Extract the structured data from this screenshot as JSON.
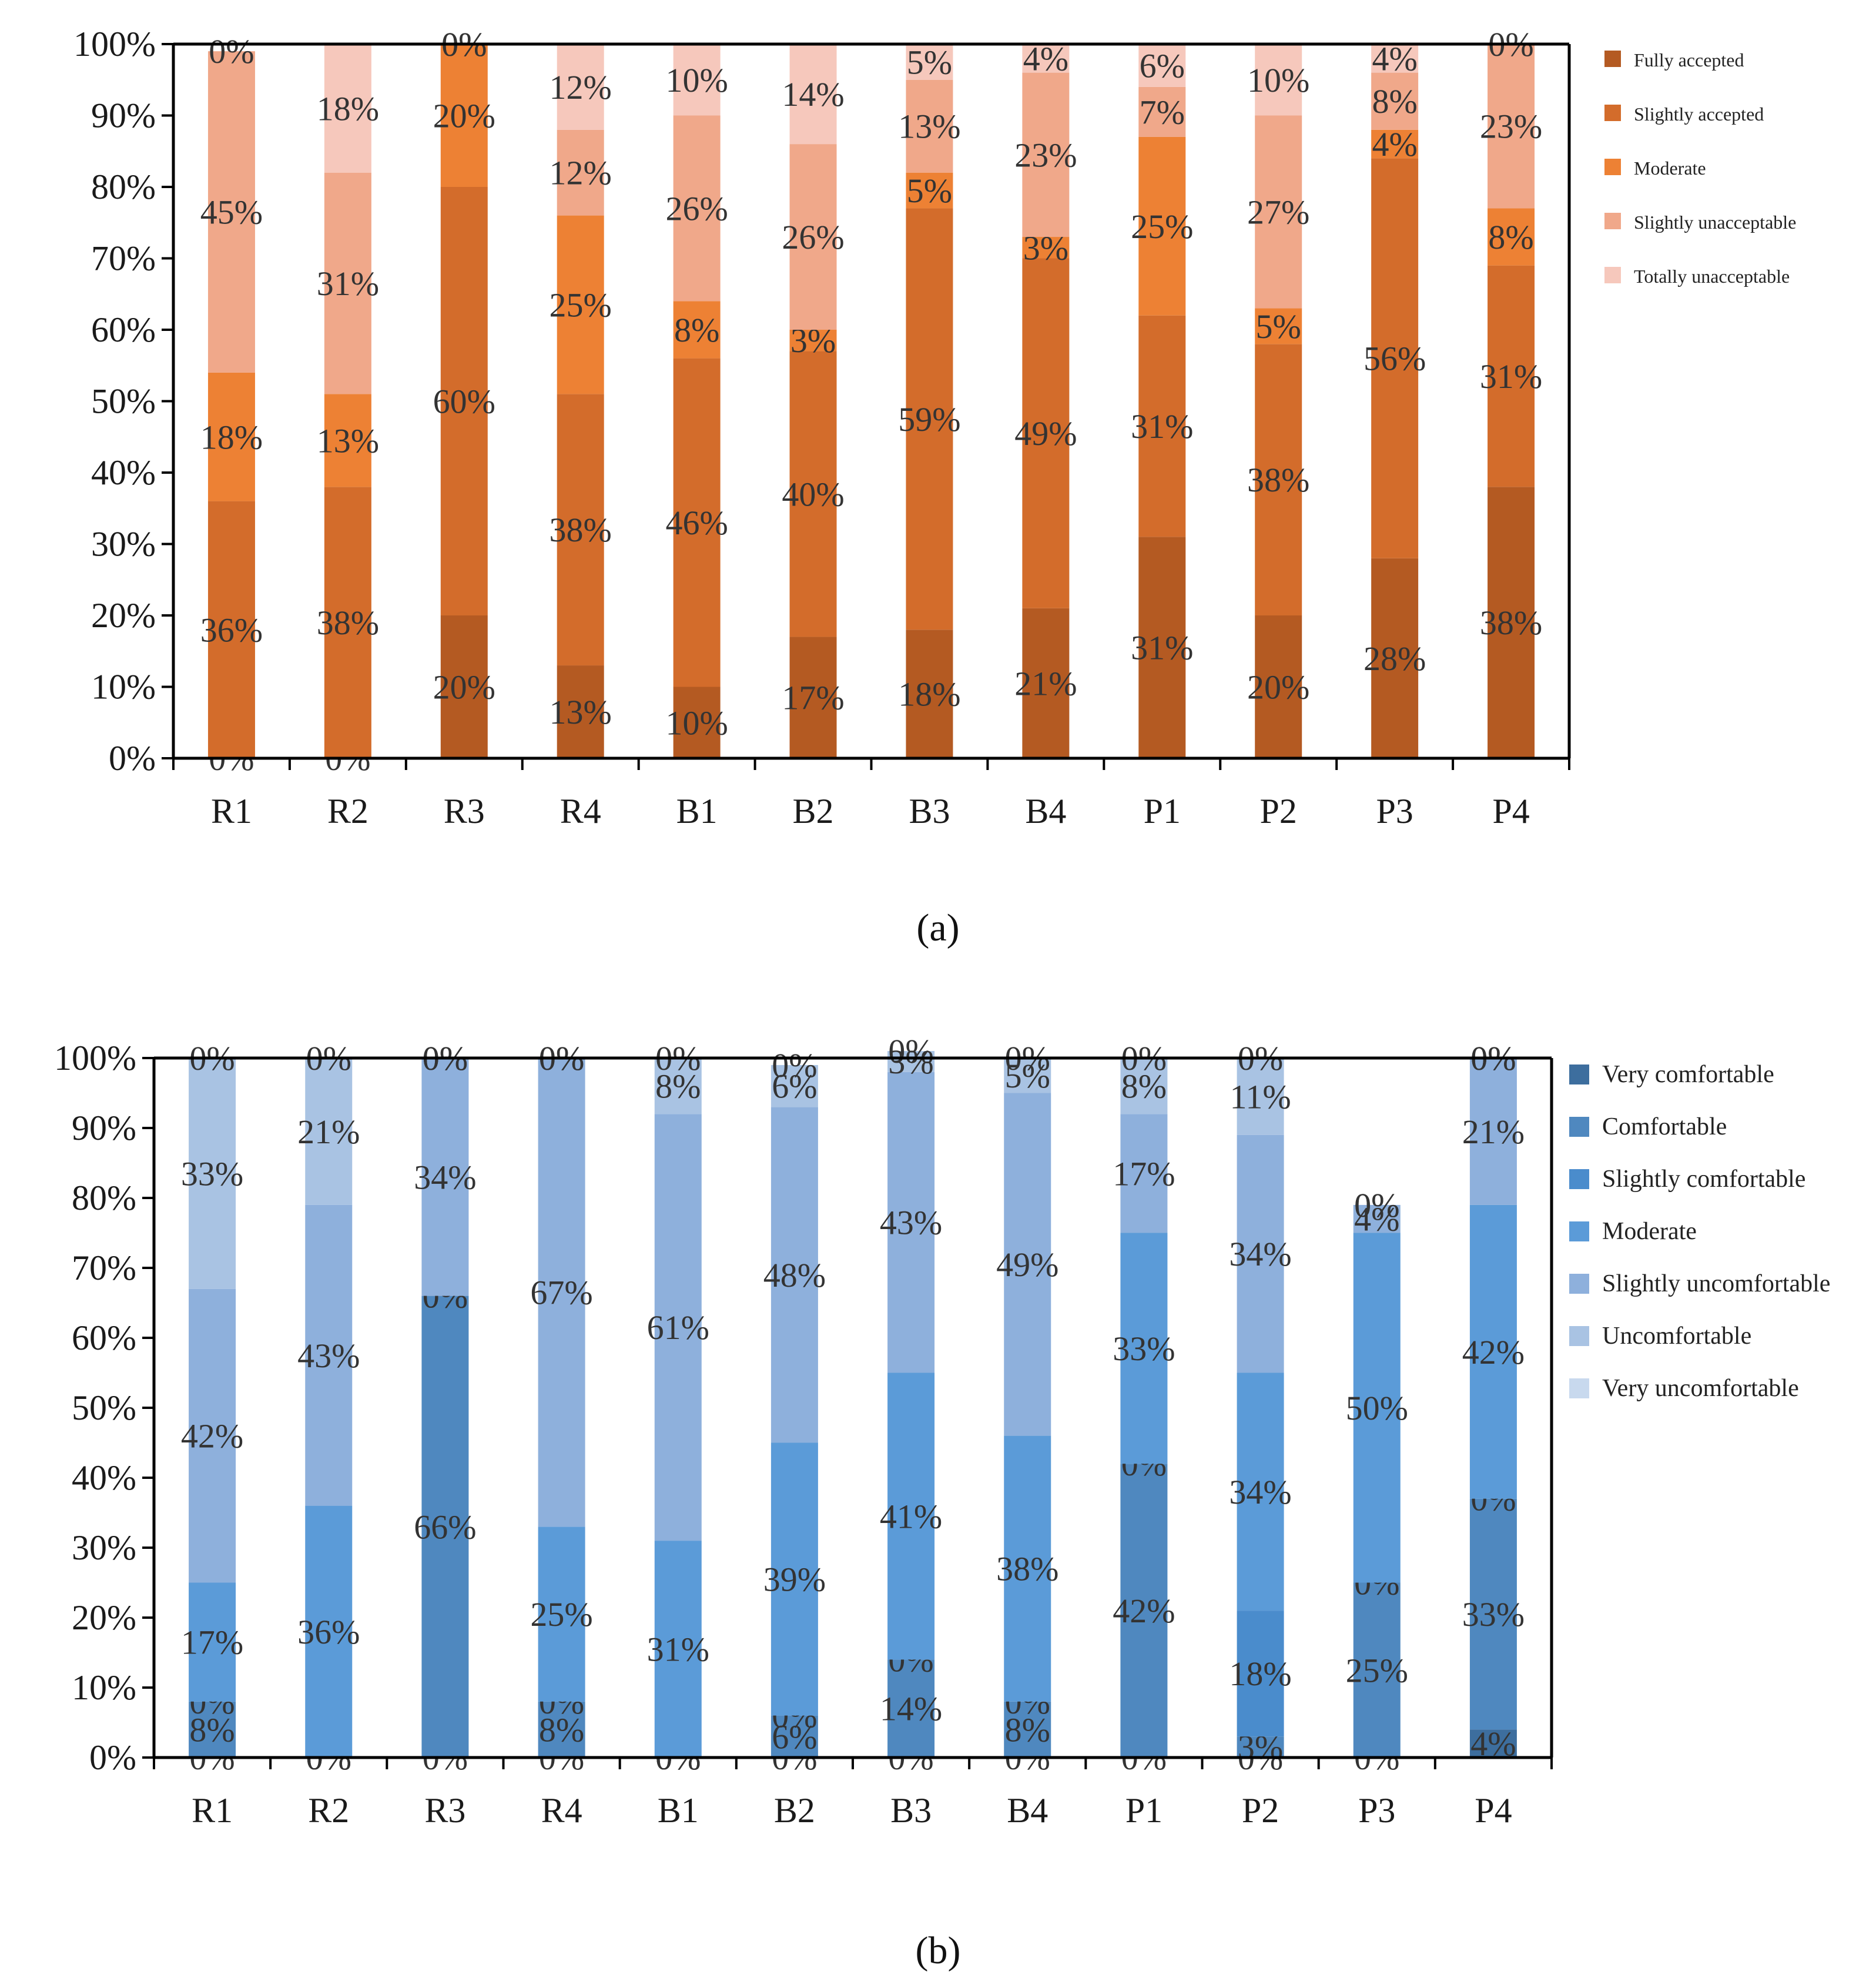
{
  "figure": {
    "panels": [
      "(a)",
      "(b)"
    ]
  },
  "chart_data": [
    {
      "id": "a",
      "type": "stacked-bar",
      "panel_label": "(a)",
      "title": "",
      "xlabel": "",
      "ylabel": "",
      "ylim": [
        0,
        100
      ],
      "yticks": [
        "0%",
        "10%",
        "20%",
        "30%",
        "40%",
        "50%",
        "60%",
        "70%",
        "80%",
        "90%",
        "100%"
      ],
      "categories": [
        "R1",
        "R2",
        "R3",
        "R4",
        "B1",
        "B2",
        "B3",
        "B4",
        "P1",
        "P2",
        "P3",
        "P4"
      ],
      "legend_position": "right",
      "series": [
        {
          "name": "Fully accepted",
          "color": "#b45a22",
          "values": [
            0,
            0,
            20,
            13,
            10,
            17,
            18,
            21,
            31,
            20,
            28,
            38
          ]
        },
        {
          "name": "Slightly accepted",
          "color": "#d36c2b",
          "values": [
            36,
            38,
            60,
            38,
            46,
            40,
            59,
            49,
            31,
            38,
            56,
            31
          ]
        },
        {
          "name": "Moderate",
          "color": "#ed8134",
          "values": [
            18,
            13,
            20,
            25,
            8,
            3,
            5,
            3,
            25,
            5,
            4,
            8
          ]
        },
        {
          "name": "Slightly unacceptable",
          "color": "#f0a88a",
          "values": [
            45,
            31,
            0,
            12,
            26,
            26,
            13,
            23,
            7,
            27,
            8,
            23
          ]
        },
        {
          "name": "Totally unacceptable",
          "color": "#f6c8bc",
          "values": [
            0,
            18,
            0,
            12,
            10,
            14,
            5,
            4,
            6,
            10,
            4,
            0
          ]
        }
      ]
    },
    {
      "id": "b",
      "type": "stacked-bar",
      "panel_label": "(b)",
      "title": "",
      "xlabel": "",
      "ylabel": "",
      "ylim": [
        0,
        100
      ],
      "yticks": [
        "0%",
        "10%",
        "20%",
        "30%",
        "40%",
        "50%",
        "60%",
        "70%",
        "80%",
        "90%",
        "100%"
      ],
      "categories": [
        "R1",
        "R2",
        "R3",
        "R4",
        "B1",
        "B2",
        "B3",
        "B4",
        "P1",
        "P2",
        "P3",
        "P4"
      ],
      "legend_position": "right",
      "series": [
        {
          "name": "Very comfortable",
          "color": "#3d6e9e",
          "values": [
            0,
            0,
            0,
            0,
            0,
            0,
            0,
            0,
            0,
            0,
            0,
            4
          ]
        },
        {
          "name": "Comfortable",
          "color": "#4f88bf",
          "values": [
            8,
            0,
            66,
            8,
            0,
            6,
            14,
            8,
            42,
            3,
            25,
            33
          ]
        },
        {
          "name": "Slightly comfortable",
          "color": "#4a8ccc",
          "values": [
            0,
            0,
            0,
            0,
            0,
            0,
            0,
            0,
            0,
            18,
            0,
            0
          ]
        },
        {
          "name": "Moderate",
          "color": "#5b9bd8",
          "values": [
            17,
            36,
            0,
            25,
            31,
            39,
            41,
            38,
            33,
            34,
            50,
            42
          ]
        },
        {
          "name": "Slightly uncomfortable",
          "color": "#8eb0dc",
          "values": [
            42,
            43,
            34,
            67,
            61,
            48,
            43,
            49,
            17,
            34,
            4,
            21
          ]
        },
        {
          "name": "Uncomfortable",
          "color": "#a9c3e3",
          "values": [
            33,
            21,
            0,
            0,
            8,
            6,
            3,
            5,
            8,
            11,
            0,
            0
          ]
        },
        {
          "name": "Very uncomfortable",
          "color": "#c8d9ee",
          "values": [
            0,
            0,
            0,
            0,
            0,
            0,
            0,
            0,
            0,
            0,
            0,
            0
          ]
        }
      ]
    }
  ]
}
